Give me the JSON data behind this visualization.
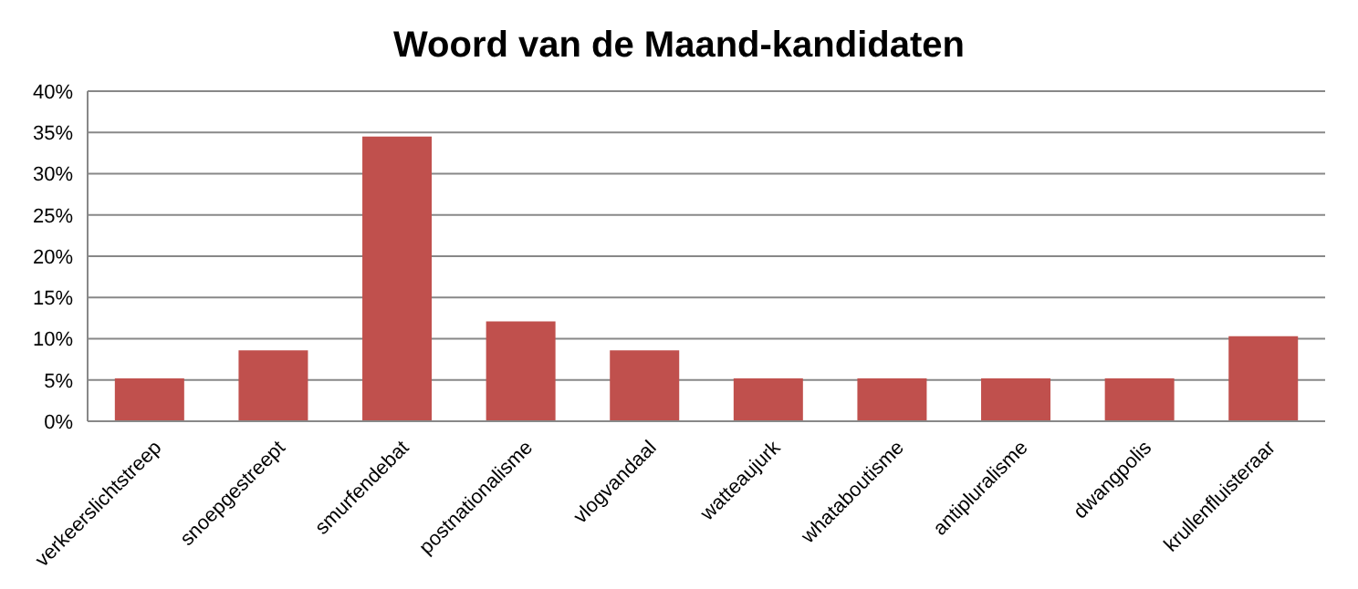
{
  "chart_data": {
    "type": "bar",
    "title": "Woord van de Maand-kandidaten",
    "categories": [
      "verkeerslichtstreep",
      "snoepgestreept",
      "smurfendebat",
      "postnationalisme",
      "vlogvandaal",
      "watteaujurk",
      "whataboutisme",
      "antipluralisme",
      "dwangpolis",
      "krullenfluisteraar"
    ],
    "values": [
      5.2,
      8.6,
      34.5,
      12.1,
      8.6,
      5.2,
      5.2,
      5.2,
      5.2,
      10.3
    ],
    "color": "#c0504d",
    "ylim": [
      0,
      40
    ],
    "yticks": [
      {
        "value": 0,
        "label": "0%"
      },
      {
        "value": 5,
        "label": "5%"
      },
      {
        "value": 10,
        "label": "10%"
      },
      {
        "value": 15,
        "label": "15%"
      },
      {
        "value": 20,
        "label": "20%"
      },
      {
        "value": 25,
        "label": "25%"
      },
      {
        "value": 30,
        "label": "30%"
      },
      {
        "value": 35,
        "label": "35%"
      },
      {
        "value": 40,
        "label": "40%"
      }
    ],
    "grid": "y",
    "legend": false
  }
}
